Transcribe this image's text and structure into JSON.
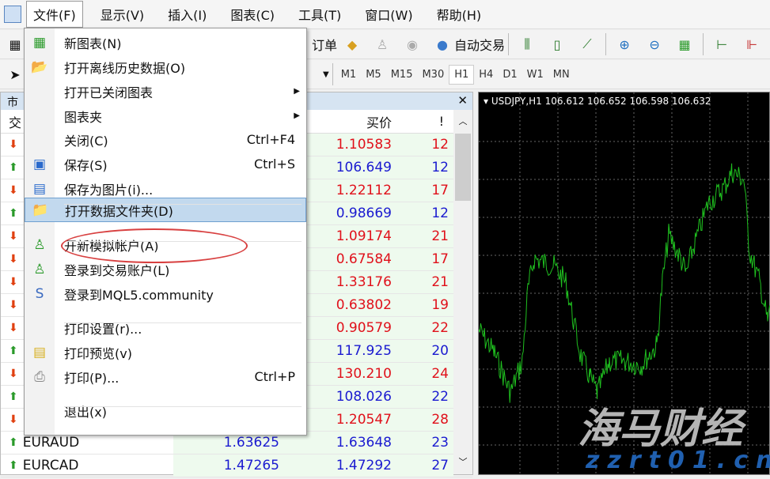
{
  "menubar": {
    "items": [
      "文件(F)",
      "显示(V)",
      "插入(I)",
      "图表(C)",
      "工具(T)",
      "窗口(W)",
      "帮助(H)"
    ]
  },
  "toolbar": {
    "new_order_label": "订单",
    "auto_trading_label": "自动交易"
  },
  "timeframes": [
    "M1",
    "M5",
    "M15",
    "M30",
    "H1",
    "H4",
    "D1",
    "W1",
    "MN"
  ],
  "active_timeframe": "H1",
  "market_watch": {
    "title": "市",
    "headers": {
      "symbol": "交",
      "ask": "买价",
      "spread": "!"
    },
    "rows": [
      {
        "symbol": "",
        "bid": "",
        "ask": "1.10583",
        "spread": "12",
        "dir": "down"
      },
      {
        "symbol": "",
        "bid": "",
        "ask": "106.649",
        "spread": "12",
        "dir": "up"
      },
      {
        "symbol": "",
        "bid": "",
        "ask": "1.22112",
        "spread": "17",
        "dir": "down"
      },
      {
        "symbol": "",
        "bid": "",
        "ask": "0.98669",
        "spread": "12",
        "dir": "up"
      },
      {
        "symbol": "",
        "bid": "",
        "ask": "1.09174",
        "spread": "21",
        "dir": "down"
      },
      {
        "symbol": "",
        "bid": "",
        "ask": "0.67584",
        "spread": "17",
        "dir": "down"
      },
      {
        "symbol": "",
        "bid": "",
        "ask": "1.33176",
        "spread": "21",
        "dir": "down"
      },
      {
        "symbol": "",
        "bid": "",
        "ask": "0.63802",
        "spread": "19",
        "dir": "down"
      },
      {
        "symbol": "",
        "bid": "",
        "ask": "0.90579",
        "spread": "22",
        "dir": "down"
      },
      {
        "symbol": "",
        "bid": "",
        "ask": "117.925",
        "spread": "20",
        "dir": "up"
      },
      {
        "symbol": "",
        "bid": "",
        "ask": "130.210",
        "spread": "24",
        "dir": "down"
      },
      {
        "symbol": "",
        "bid": "",
        "ask": "108.026",
        "spread": "22",
        "dir": "up"
      },
      {
        "symbol": "",
        "bid": "",
        "ask": "1.20547",
        "spread": "28",
        "dir": "down"
      },
      {
        "symbol": "EURAUD",
        "bid": "1.63625",
        "ask": "1.63648",
        "spread": "23",
        "dir": "up"
      },
      {
        "symbol": "EURCAD",
        "bid": "1.47265",
        "ask": "1.47292",
        "spread": "27",
        "dir": "up"
      }
    ]
  },
  "chart": {
    "label": "USDJPY,H1  106.612 106.652 106.598 106.632",
    "line_color": "#1fbf1f"
  },
  "file_menu": {
    "items": [
      {
        "label": "新图表(N)",
        "icon": "new-chart-icon",
        "shortcut": ""
      },
      {
        "label": "打开离线历史数据(O)",
        "icon": "open-folder-icon",
        "shortcut": ""
      },
      {
        "label": "打开已关闭图表",
        "icon": "",
        "shortcut": "",
        "submenu": true
      },
      {
        "label": "图表夹",
        "icon": "",
        "shortcut": "",
        "submenu": true
      },
      {
        "label": "关闭(C)",
        "icon": "",
        "shortcut": "Ctrl+F4"
      },
      {
        "label": "保存(S)",
        "icon": "save-icon",
        "shortcut": "Ctrl+S"
      },
      {
        "label": "保存为图片(i)...",
        "icon": "save-picture-icon",
        "shortcut": ""
      },
      {
        "label": "打开数据文件夹(D)",
        "icon": "folder-icon",
        "shortcut": "",
        "highlighted": true
      },
      {
        "label": "开新模拟帐户(A)",
        "icon": "new-account-icon",
        "shortcut": ""
      },
      {
        "label": "登录到交易账户(L)",
        "icon": "login-icon",
        "shortcut": ""
      },
      {
        "label": "登录到MQL5.community",
        "icon": "mql5-icon",
        "shortcut": ""
      },
      {
        "label": "打印设置(r)...",
        "icon": "",
        "shortcut": ""
      },
      {
        "label": "打印预览(v)",
        "icon": "print-preview-icon",
        "shortcut": ""
      },
      {
        "label": "打印(P)...",
        "icon": "printer-icon",
        "shortcut": "Ctrl+P"
      },
      {
        "label": "退出(x)",
        "icon": "",
        "shortcut": ""
      }
    ]
  },
  "watermark": {
    "text": "海马财经",
    "url": "zzrt01.cn"
  }
}
